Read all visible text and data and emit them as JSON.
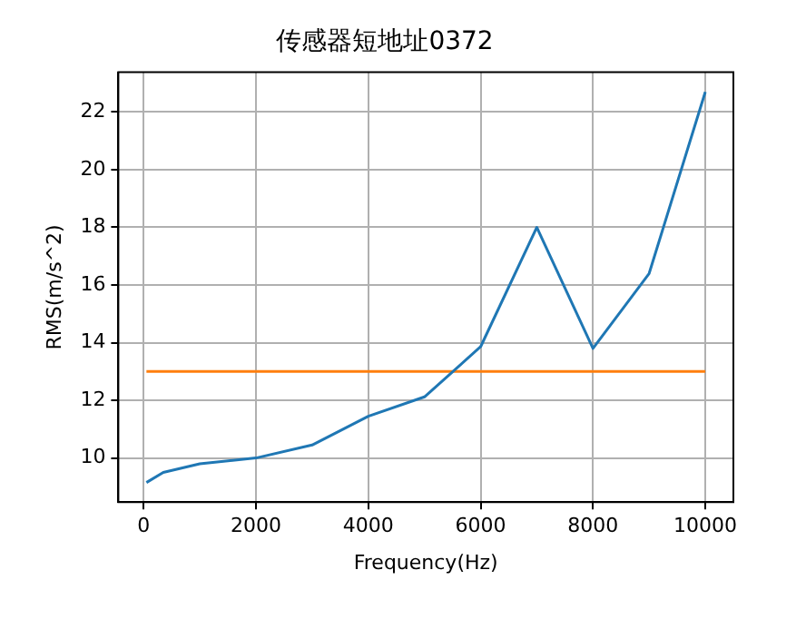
{
  "chart_data": {
    "type": "line",
    "title": "传感器短地址0372",
    "xlabel": "Frequency(Hz)",
    "ylabel": "RMS(m/s^2)",
    "xlim": [
      -450,
      10500
    ],
    "ylim": [
      8.47,
      23.38
    ],
    "xticks": [
      0,
      2000,
      4000,
      6000,
      8000,
      10000
    ],
    "yticks": [
      10,
      12,
      14,
      16,
      18,
      20,
      22
    ],
    "grid": true,
    "series": [
      {
        "color": "#1f77b4",
        "x": [
          50,
          350,
          1000,
          2000,
          3000,
          4000,
          5000,
          6000,
          7000,
          8000,
          9000,
          10000
        ],
        "values": [
          9.15,
          9.5,
          9.8,
          10.0,
          10.45,
          11.45,
          12.12,
          13.86,
          18.0,
          13.8,
          16.4,
          22.7
        ]
      },
      {
        "color": "#ff7f0e",
        "x": [
          50,
          10000
        ],
        "values": [
          13,
          13
        ]
      }
    ]
  }
}
